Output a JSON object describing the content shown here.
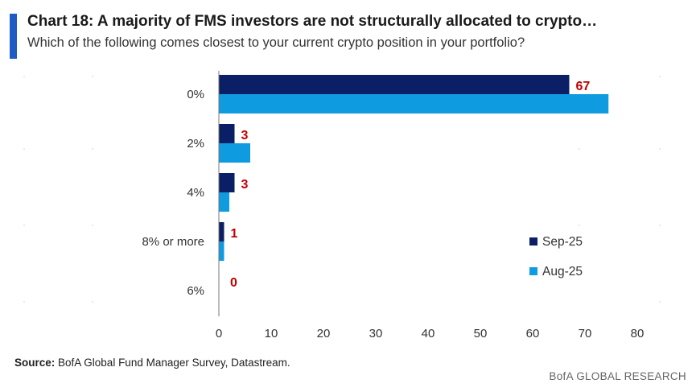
{
  "header": {
    "title": "Chart 18: A majority of FMS investors are not structurally allocated to crypto…",
    "subtitle": "Which of the following comes closest to your current crypto position in your portfolio?"
  },
  "footer": {
    "source_label": "Source:",
    "source_text": " BofA Global Fund Manager Survey, Datastream.",
    "brand": "BofA GLOBAL RESEARCH"
  },
  "colors": {
    "sep": "#0b1f66",
    "aug": "#0f9be0",
    "label": "#c00000",
    "accent": "#1f5bc4"
  },
  "chart_data": {
    "type": "bar",
    "orientation": "horizontal",
    "title": "Chart 18: A majority of FMS investors are not structurally allocated to crypto…",
    "categories": [
      "0%",
      "2%",
      "4%",
      "8% or more",
      "6%"
    ],
    "series": [
      {
        "name": "Sep-25",
        "values": [
          67,
          3,
          3,
          1,
          0
        ],
        "labels": [
          "67",
          "3",
          "3",
          "1",
          "0"
        ]
      },
      {
        "name": "Aug-25",
        "values": [
          74.5,
          6,
          2,
          1,
          0
        ]
      }
    ],
    "xlim": [
      0,
      80
    ],
    "xticks": [
      "0",
      "10",
      "20",
      "30",
      "40",
      "50",
      "60",
      "70",
      "80"
    ],
    "legend_position": "bottom-right",
    "grid": false
  }
}
